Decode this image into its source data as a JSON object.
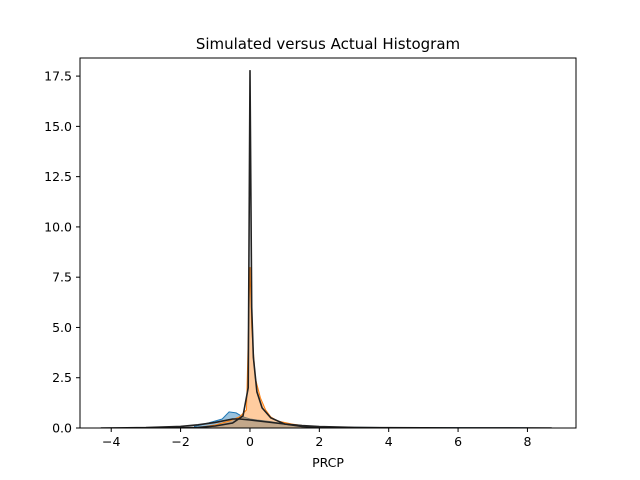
{
  "chart_data": {
    "type": "area",
    "title": "Simulated versus Actual Histogram",
    "xlabel": "PRCP",
    "ylabel": "",
    "xlim": [
      -4.9,
      9.4
    ],
    "ylim": [
      0,
      18.4
    ],
    "xticks": [
      -4,
      -2,
      0,
      2,
      4,
      6,
      8
    ],
    "yticks": [
      0.0,
      2.5,
      5.0,
      7.5,
      10.0,
      12.5,
      15.0,
      17.5
    ],
    "grid": false,
    "legend": "none",
    "colors": {
      "simulated_hist": "#1f77b4",
      "actual_hist": "#ff7f0e",
      "kde_line": "#222222"
    },
    "series": [
      {
        "role": "simulated-histogram",
        "x": [
          -1.6,
          -1.2,
          -0.8,
          -0.6,
          -0.4,
          -0.2,
          0.0,
          0.2,
          0.6,
          1.0,
          1.5,
          2.0,
          3.0,
          4.0,
          5.0,
          6.0,
          7.0,
          8.0
        ],
        "values": [
          0.08,
          0.25,
          0.45,
          0.8,
          0.75,
          0.55,
          0.45,
          0.4,
          0.32,
          0.2,
          0.1,
          0.06,
          0.03,
          0.02,
          0.01,
          0.01,
          0.005,
          0.003
        ]
      },
      {
        "role": "actual-histogram",
        "x": [
          -1.4,
          -1.0,
          -0.6,
          -0.3,
          -0.1,
          0.0,
          0.05,
          0.15,
          0.3,
          0.45,
          0.6,
          0.8,
          1.2,
          1.6,
          2.0,
          2.5
        ],
        "values": [
          0.05,
          0.15,
          0.35,
          0.55,
          0.9,
          8.0,
          5.0,
          2.5,
          1.5,
          0.9,
          0.55,
          0.35,
          0.2,
          0.1,
          0.05,
          0.02
        ]
      },
      {
        "role": "simulated-kde",
        "x": [
          -4.3,
          -3.0,
          -2.0,
          -1.5,
          -1.0,
          -0.5,
          -0.3,
          0.0,
          0.5,
          1.0,
          1.5,
          2.0,
          3.0,
          4.0,
          5.0,
          6.0,
          7.0,
          8.7
        ],
        "values": [
          0.0,
          0.02,
          0.08,
          0.16,
          0.28,
          0.45,
          0.45,
          0.4,
          0.3,
          0.2,
          0.12,
          0.07,
          0.03,
          0.015,
          0.01,
          0.006,
          0.004,
          0.0
        ]
      },
      {
        "role": "actual-kde",
        "x": [
          -2.5,
          -1.5,
          -1.0,
          -0.5,
          -0.2,
          -0.05,
          0.0,
          0.05,
          0.1,
          0.2,
          0.35,
          0.6,
          1.0,
          1.5,
          2.0,
          3.0
        ],
        "values": [
          0.0,
          0.03,
          0.1,
          0.25,
          0.6,
          2.0,
          17.8,
          6.0,
          3.5,
          1.8,
          1.0,
          0.5,
          0.2,
          0.08,
          0.03,
          0.0
        ]
      }
    ]
  }
}
